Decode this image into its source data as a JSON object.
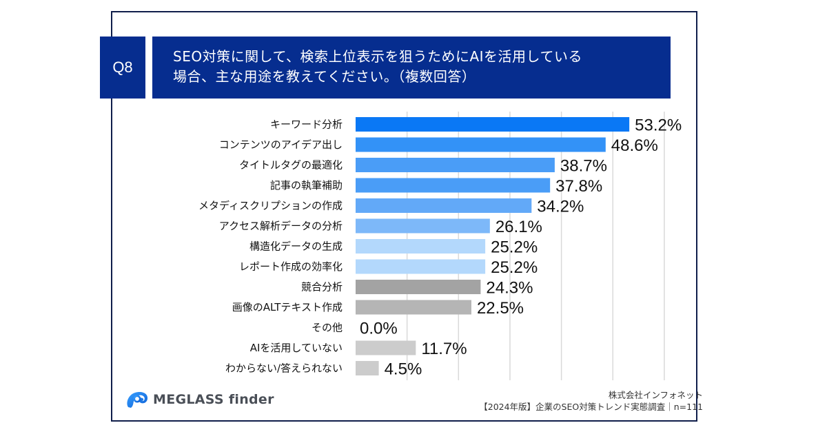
{
  "question": {
    "badge": "Q8",
    "lines": [
      "SEO対策に関して、検索上位表示を狙うためにAIを活用している",
      "場合、主な用途を教えてください。（複数回答）"
    ]
  },
  "colors": {
    "header_bg": "#062d8f",
    "frame": "#0f1d4a"
  },
  "chart_data": {
    "type": "bar",
    "orientation": "horizontal",
    "title": "SEO対策に関して、検索上位表示を狙うためにAIを活用している場合、主な用途を教えてください。（複数回答）",
    "xlabel": "",
    "ylabel": "",
    "xlim": [
      0,
      60
    ],
    "grid": true,
    "grid_step": 10,
    "unit": "%",
    "categories": [
      "キーワード分析",
      "コンテンツのアイデア出し",
      "タイトルタグの最適化",
      "記事の執筆補助",
      "メタディスクリプションの作成",
      "アクセス解析データの分析",
      "構造化データの生成",
      "レポート作成の効率化",
      "競合分析",
      "画像のALTテキスト作成",
      "その他",
      "AIを活用していない",
      "わからない/答えられない"
    ],
    "values": [
      53.2,
      48.6,
      38.7,
      37.8,
      34.2,
      26.1,
      25.2,
      25.2,
      24.3,
      22.5,
      0.0,
      11.7,
      4.5
    ],
    "labels": [
      "53.2%",
      "48.6%",
      "38.7%",
      "37.8%",
      "34.2%",
      "26.1%",
      "25.2%",
      "25.2%",
      "24.3%",
      "22.5%",
      "0.0%",
      "11.7%",
      "4.5%"
    ],
    "bar_colors": [
      "#0a78f5",
      "#3392f7",
      "#4a9df7",
      "#4a9df7",
      "#62a9f8",
      "#7db8f9",
      "#b3d8fc",
      "#b3d8fc",
      "#a3a3a3",
      "#b5b5b5",
      "#cccccc",
      "#cccccc",
      "#cccccc"
    ]
  },
  "footer": {
    "brand": "MEGLASS finder",
    "company": "株式会社インフォネット",
    "survey": "【2024年版】企業のSEO対策トレンド実態調査｜n=111"
  }
}
